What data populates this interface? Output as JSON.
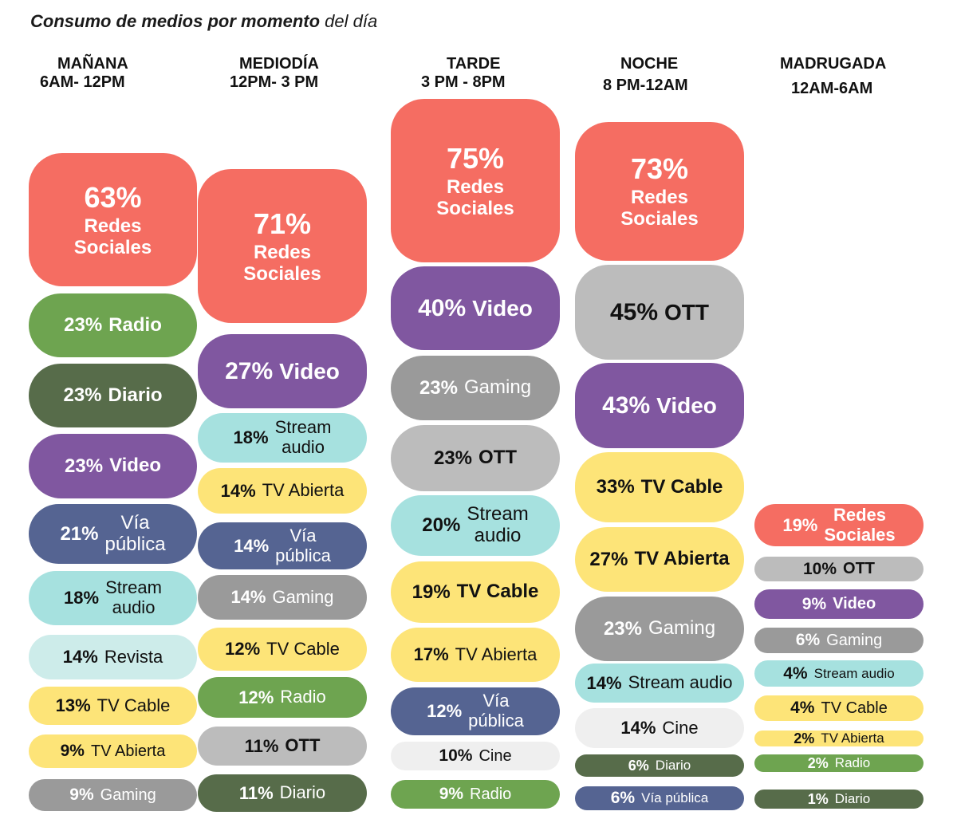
{
  "title": {
    "bold": "Consumo de medios por momento",
    "rest": " del día"
  },
  "colors": {
    "Redes Sociales": "#f56d62",
    "Radio": "#6ea450",
    "Diario": "#576c4a",
    "Video": "#8057a0",
    "Vía pública": "#556492",
    "Stream audio": "#a6e1df",
    "Revista": "#cdecea",
    "TV Cable": "#fde478",
    "TV Abierta": "#fde478",
    "Gaming": "#9a9a9a",
    "OTT": "#bcbcbc",
    "Cine": "#efefef"
  },
  "chart_data": {
    "type": "table",
    "title": "Consumo de medios por momento del día",
    "periods": [
      {
        "name": "MAÑANA",
        "range": "6AM- 12PM",
        "items": [
          {
            "media": "Redes Sociales",
            "label": "Redes\nSociales",
            "value": 63,
            "pct": "63%"
          },
          {
            "media": "Radio",
            "label": "Radio",
            "value": 23,
            "pct": "23%"
          },
          {
            "media": "Diario",
            "label": "Diario",
            "value": 23,
            "pct": "23%"
          },
          {
            "media": "Video",
            "label": "Video",
            "value": 23,
            "pct": "23%"
          },
          {
            "media": "Vía pública",
            "label": "Vía\npública",
            "value": 21,
            "pct": "21%"
          },
          {
            "media": "Stream audio",
            "label": "Stream\naudio",
            "value": 18,
            "pct": "18%"
          },
          {
            "media": "Revista",
            "label": "Revista",
            "value": 14,
            "pct": "14%"
          },
          {
            "media": "TV Cable",
            "label": "TV Cable",
            "value": 13,
            "pct": "13%"
          },
          {
            "media": "TV Abierta",
            "label": "TV Abierta",
            "value": 9,
            "pct": "9%"
          },
          {
            "media": "Gaming",
            "label": "Gaming",
            "value": 9,
            "pct": "9%"
          }
        ]
      },
      {
        "name": "MEDIODÍA",
        "range": "12PM- 3 PM",
        "items": [
          {
            "media": "Redes Sociales",
            "label": "Redes\nSociales",
            "value": 71,
            "pct": "71%"
          },
          {
            "media": "Video",
            "label": "Video",
            "value": 27,
            "pct": "27%"
          },
          {
            "media": "Stream audio",
            "label": "Stream\naudio",
            "value": 18,
            "pct": "18%"
          },
          {
            "media": "TV Abierta",
            "label": "TV Abierta",
            "value": 14,
            "pct": "14%"
          },
          {
            "media": "Vía pública",
            "label": "Vía\npública",
            "value": 14,
            "pct": "14%"
          },
          {
            "media": "Gaming",
            "label": "Gaming",
            "value": 14,
            "pct": "14%"
          },
          {
            "media": "TV Cable",
            "label": "TV Cable",
            "value": 12,
            "pct": "12%"
          },
          {
            "media": "Radio",
            "label": "Radio",
            "value": 12,
            "pct": "12%"
          },
          {
            "media": "OTT",
            "label": "OTT",
            "value": 11,
            "pct": "11%"
          },
          {
            "media": "Diario",
            "label": "Diario",
            "value": 11,
            "pct": "11%"
          }
        ]
      },
      {
        "name": "TARDE",
        "range": "3 PM - 8PM",
        "items": [
          {
            "media": "Redes Sociales",
            "label": "Redes\nSociales",
            "value": 75,
            "pct": "75%"
          },
          {
            "media": "Video",
            "label": "Video",
            "value": 40,
            "pct": "40%"
          },
          {
            "media": "Gaming",
            "label": "Gaming",
            "value": 23,
            "pct": "23%"
          },
          {
            "media": "OTT",
            "label": "OTT",
            "value": 23,
            "pct": "23%"
          },
          {
            "media": "Stream audio",
            "label": "Stream\naudio",
            "value": 20,
            "pct": "20%"
          },
          {
            "media": "TV Cable",
            "label": "TV Cable",
            "value": 19,
            "pct": "19%"
          },
          {
            "media": "TV Abierta",
            "label": "TV Abierta",
            "value": 17,
            "pct": "17%"
          },
          {
            "media": "Vía pública",
            "label": "Vía\npública",
            "value": 12,
            "pct": "12%"
          },
          {
            "media": "Cine",
            "label": "Cine",
            "value": 10,
            "pct": "10%"
          },
          {
            "media": "Radio",
            "label": "Radio",
            "value": 9,
            "pct": "9%"
          }
        ]
      },
      {
        "name": "NOCHE",
        "range": "8 PM-12AM",
        "items": [
          {
            "media": "Redes Sociales",
            "label": "Redes\nSociales",
            "value": 73,
            "pct": "73%"
          },
          {
            "media": "OTT",
            "label": "OTT",
            "value": 45,
            "pct": "45%"
          },
          {
            "media": "Video",
            "label": "Video",
            "value": 43,
            "pct": "43%"
          },
          {
            "media": "TV Cable",
            "label": "TV Cable",
            "value": 33,
            "pct": "33%"
          },
          {
            "media": "TV Abierta",
            "label": "TV Abierta",
            "value": 27,
            "pct": "27%"
          },
          {
            "media": "Gaming",
            "label": "Gaming",
            "value": 23,
            "pct": "23%"
          },
          {
            "media": "Stream audio",
            "label": "Stream audio",
            "value": 14,
            "pct": "14%"
          },
          {
            "media": "Cine",
            "label": "Cine",
            "value": 14,
            "pct": "14%"
          },
          {
            "media": "Diario",
            "label": "Diario",
            "value": 6,
            "pct": "6%"
          },
          {
            "media": "Vía pública",
            "label": "Vía pública",
            "value": 6,
            "pct": "6%"
          }
        ]
      },
      {
        "name": "MADRUGADA",
        "range": "12AM-6AM",
        "items": [
          {
            "media": "Redes Sociales",
            "label": "Redes\nSociales",
            "value": 19,
            "pct": "19%"
          },
          {
            "media": "OTT",
            "label": "OTT",
            "value": 10,
            "pct": "10%"
          },
          {
            "media": "Video",
            "label": "Video",
            "value": 9,
            "pct": "9%"
          },
          {
            "media": "Gaming",
            "label": "Gaming",
            "value": 6,
            "pct": "6%"
          },
          {
            "media": "Stream audio",
            "label": "Stream audio",
            "value": 4,
            "pct": "4%"
          },
          {
            "media": "TV Cable",
            "label": "TV Cable",
            "value": 4,
            "pct": "4%"
          },
          {
            "media": "TV Abierta",
            "label": "TV Abierta",
            "value": 2,
            "pct": "2%"
          },
          {
            "media": "Radio",
            "label": "Radio",
            "value": 2,
            "pct": "2%"
          },
          {
            "media": "Diario",
            "label": "Diario",
            "value": 1,
            "pct": "1%"
          }
        ]
      }
    ]
  }
}
